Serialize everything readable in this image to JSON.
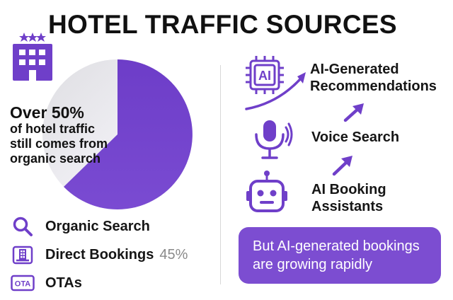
{
  "header": {
    "title": "HOTEL TRAFFIC SOURCES"
  },
  "colors": {
    "accent": "#6f3fc9",
    "accent_light": "#7c4dd1",
    "pie_gray": "#e7e7e9",
    "text": "#141414",
    "muted": "#8a8a8a"
  },
  "pie": {
    "headline": "Over 50%",
    "subtext_lines": [
      "of hotel traffic",
      "still comes from",
      "organic search"
    ]
  },
  "legend": {
    "items": [
      {
        "label": "Organic Search",
        "value": "",
        "icon": "search-icon"
      },
      {
        "label": "Direct Bookings",
        "value": "45%",
        "icon": "building-icon"
      },
      {
        "label": "OTAs",
        "value": "",
        "icon": "ota-icon"
      }
    ]
  },
  "trends": {
    "items": [
      {
        "label_lines": [
          "AI-Generated",
          "Recommendations"
        ],
        "icon": "ai-chip-icon"
      },
      {
        "label_lines": [
          "Voice Search"
        ],
        "icon": "microphone-icon"
      },
      {
        "label_lines": [
          "AI Booking",
          "Assistants"
        ],
        "icon": "robot-icon"
      }
    ]
  },
  "ai_chip_text": "AI",
  "ota_icon_text": "OTA",
  "callout": {
    "lines": [
      "But AI-generated bookings",
      "are growing rapidly"
    ]
  }
}
